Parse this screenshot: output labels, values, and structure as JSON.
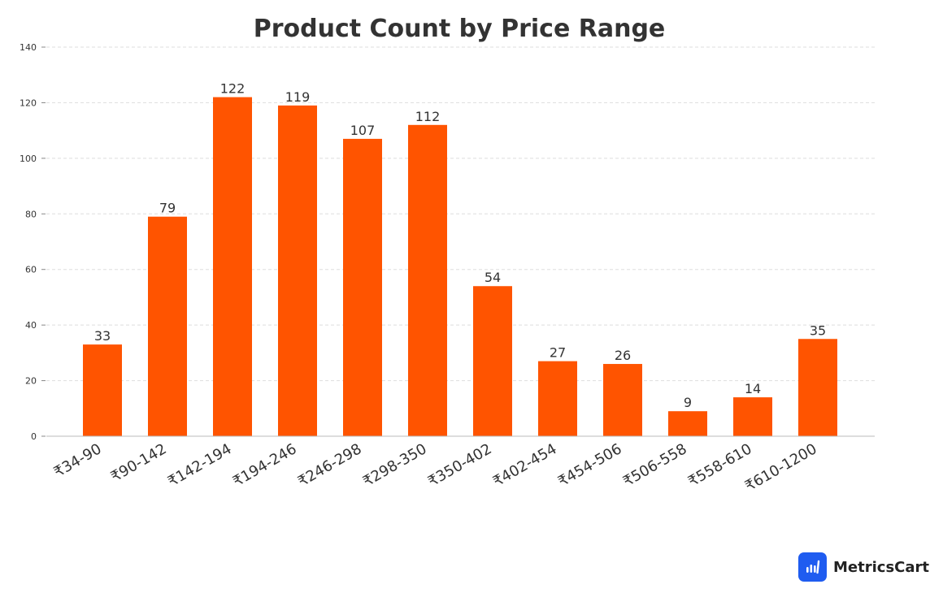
{
  "chart_data": {
    "type": "bar",
    "title": "Product Count by Price Range",
    "xlabel": "",
    "ylabel": "",
    "categories": [
      "₹34-90",
      "₹90-142",
      "₹142-194",
      "₹194-246",
      "₹246-298",
      "₹298-350",
      "₹350-402",
      "₹402-454",
      "₹454-506",
      "₹506-558",
      "₹558-610",
      "₹610-1200"
    ],
    "values": [
      33,
      79,
      122,
      119,
      107,
      112,
      54,
      27,
      26,
      9,
      14,
      35
    ],
    "ylim": [
      0,
      140
    ],
    "yticks": [
      "0",
      "20",
      "40",
      "60",
      "80",
      "100",
      "120",
      "140"
    ],
    "grid": true,
    "bar_color": "#ff5400",
    "data_labels": true
  },
  "brand": {
    "name": "MetricsCart",
    "logo_icon": "bar-chart-icon",
    "logo_color": "#1f5cf0"
  }
}
